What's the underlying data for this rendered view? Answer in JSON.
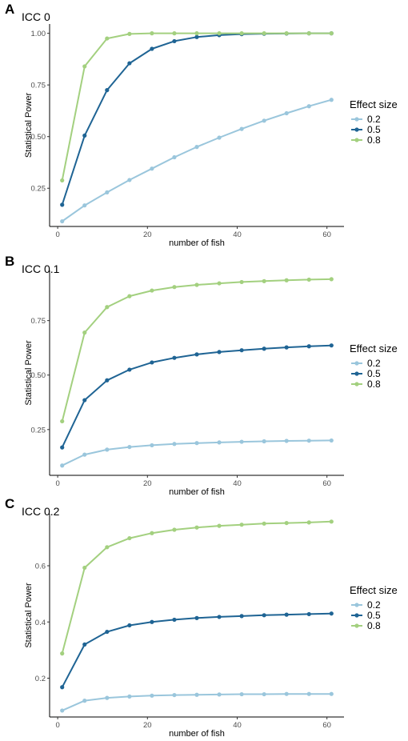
{
  "chart_data": [
    {
      "type": "line",
      "letter": "A",
      "title": "ICC 0",
      "xlabel": "number of fish",
      "ylabel": "Statistical Power",
      "xlim": [
        -1.8,
        63.8
      ],
      "ylim": [
        0.065,
        1.045
      ],
      "xticks": [
        0,
        20,
        40,
        60
      ],
      "yticks": [
        0.25,
        0.5,
        0.75,
        1.0
      ],
      "ytick_labels": [
        "0.25",
        "0.50",
        "0.75",
        "1.00"
      ],
      "x": [
        1,
        6,
        11,
        16,
        21,
        26,
        31,
        36,
        41,
        46,
        51,
        56,
        61
      ],
      "legend": {
        "title": "Effect size",
        "position": "right"
      },
      "grid": false,
      "series": [
        {
          "name": "0.2",
          "color": "#9ac6dc",
          "values": [
            0.09,
            0.167,
            0.23,
            0.29,
            0.345,
            0.4,
            0.45,
            0.495,
            0.537,
            0.577,
            0.613,
            0.647,
            0.678
          ]
        },
        {
          "name": "0.5",
          "color": "#1f6494",
          "values": [
            0.17,
            0.505,
            0.725,
            0.855,
            0.925,
            0.962,
            0.982,
            0.991,
            0.996,
            0.998,
            0.999,
            1.0,
            1.0
          ]
        },
        {
          "name": "0.8",
          "color": "#a3d07f",
          "values": [
            0.288,
            0.84,
            0.975,
            0.997,
            1.0,
            1.0,
            1.0,
            1.0,
            1.0,
            1.0,
            1.0,
            1.0,
            1.0
          ]
        }
      ]
    },
    {
      "type": "line",
      "letter": "B",
      "title": "ICC 0.1",
      "xlabel": "number of fish",
      "ylabel": "Statistical Power",
      "xlim": [
        -1.8,
        63.8
      ],
      "ylim": [
        0.04,
        0.98
      ],
      "xticks": [
        0,
        20,
        40,
        60
      ],
      "yticks": [
        0.25,
        0.5,
        0.75
      ],
      "ytick_labels": [
        "0.25",
        "0.50",
        "0.75"
      ],
      "x": [
        1,
        6,
        11,
        16,
        21,
        26,
        31,
        36,
        41,
        46,
        51,
        56,
        61
      ],
      "legend": {
        "title": "Effect size",
        "position": "right"
      },
      "grid": false,
      "series": [
        {
          "name": "0.2",
          "color": "#9ac6dc",
          "values": [
            0.085,
            0.135,
            0.158,
            0.17,
            0.178,
            0.184,
            0.188,
            0.191,
            0.194,
            0.196,
            0.198,
            0.199,
            0.2
          ]
        },
        {
          "name": "0.5",
          "color": "#1f6494",
          "values": [
            0.168,
            0.385,
            0.476,
            0.525,
            0.558,
            0.579,
            0.595,
            0.606,
            0.614,
            0.621,
            0.627,
            0.632,
            0.636
          ]
        },
        {
          "name": "0.8",
          "color": "#a3d07f",
          "values": [
            0.288,
            0.695,
            0.812,
            0.862,
            0.888,
            0.904,
            0.914,
            0.921,
            0.927,
            0.931,
            0.935,
            0.938,
            0.94
          ]
        }
      ]
    },
    {
      "type": "line",
      "letter": "C",
      "title": "ICC 0.2",
      "xlabel": "number of fish",
      "ylabel": "Statistical Power",
      "xlim": [
        -1.8,
        63.8
      ],
      "ylim": [
        0.062,
        0.785
      ],
      "xticks": [
        0,
        20,
        40,
        60
      ],
      "yticks": [
        0.2,
        0.4,
        0.6
      ],
      "ytick_labels": [
        "0.2",
        "0.4",
        "0.6"
      ],
      "x": [
        1,
        6,
        11,
        16,
        21,
        26,
        31,
        36,
        41,
        46,
        51,
        56,
        61
      ],
      "legend": {
        "title": "Effect size",
        "position": "right"
      },
      "grid": false,
      "series": [
        {
          "name": "0.2",
          "color": "#9ac6dc",
          "values": [
            0.085,
            0.12,
            0.13,
            0.135,
            0.138,
            0.14,
            0.141,
            0.142,
            0.143,
            0.143,
            0.144,
            0.144,
            0.144
          ]
        },
        {
          "name": "0.5",
          "color": "#1f6494",
          "values": [
            0.168,
            0.32,
            0.365,
            0.388,
            0.4,
            0.408,
            0.414,
            0.418,
            0.421,
            0.424,
            0.426,
            0.428,
            0.43
          ]
        },
        {
          "name": "0.8",
          "color": "#a3d07f",
          "values": [
            0.288,
            0.593,
            0.666,
            0.698,
            0.716,
            0.728,
            0.736,
            0.742,
            0.746,
            0.75,
            0.752,
            0.754,
            0.757
          ]
        }
      ]
    }
  ]
}
